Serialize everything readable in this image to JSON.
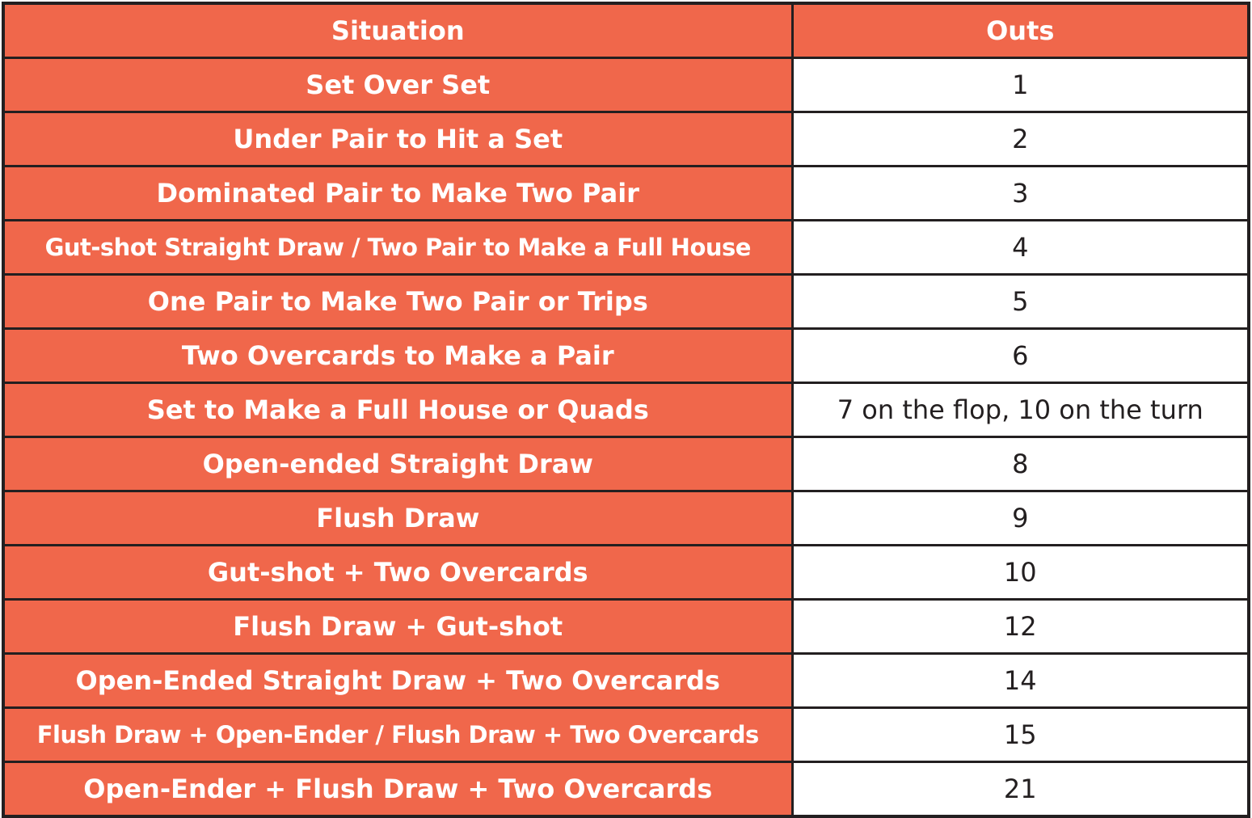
{
  "colors": {
    "header_bg": "#f0674b",
    "situation_bg": "#f0674b",
    "outs_bg": "#ffffff",
    "border": "#231f20",
    "header_text": "#ffffff",
    "outs_text": "#231f20"
  },
  "table": {
    "headers": [
      "Situation",
      "Outs"
    ],
    "rows": [
      {
        "situation": "Set Over Set",
        "outs": "1"
      },
      {
        "situation": "Under Pair to Hit a Set",
        "outs": "2"
      },
      {
        "situation": "Dominated Pair to Make Two Pair",
        "outs": "3"
      },
      {
        "situation": "Gut-shot Straight Draw / Two Pair to Make a Full House",
        "outs": "4"
      },
      {
        "situation": "One Pair to Make Two Pair or Trips",
        "outs": "5"
      },
      {
        "situation": "Two Overcards to Make a Pair",
        "outs": "6"
      },
      {
        "situation": "Set to Make a Full House or Quads",
        "outs": "7 on the flop, 10 on the turn"
      },
      {
        "situation": "Open-ended Straight Draw",
        "outs": "8"
      },
      {
        "situation": "Flush Draw",
        "outs": "9"
      },
      {
        "situation": "Gut-shot + Two Overcards",
        "outs": "10"
      },
      {
        "situation": "Flush Draw + Gut-shot",
        "outs": "12"
      },
      {
        "situation": "Open-Ended Straight Draw + Two Overcards",
        "outs": "14"
      },
      {
        "situation": "Flush Draw + Open-Ender / Flush Draw + Two Overcards",
        "outs": "15"
      },
      {
        "situation": "Open-Ender + Flush Draw + Two Overcards",
        "outs": "21"
      }
    ]
  }
}
